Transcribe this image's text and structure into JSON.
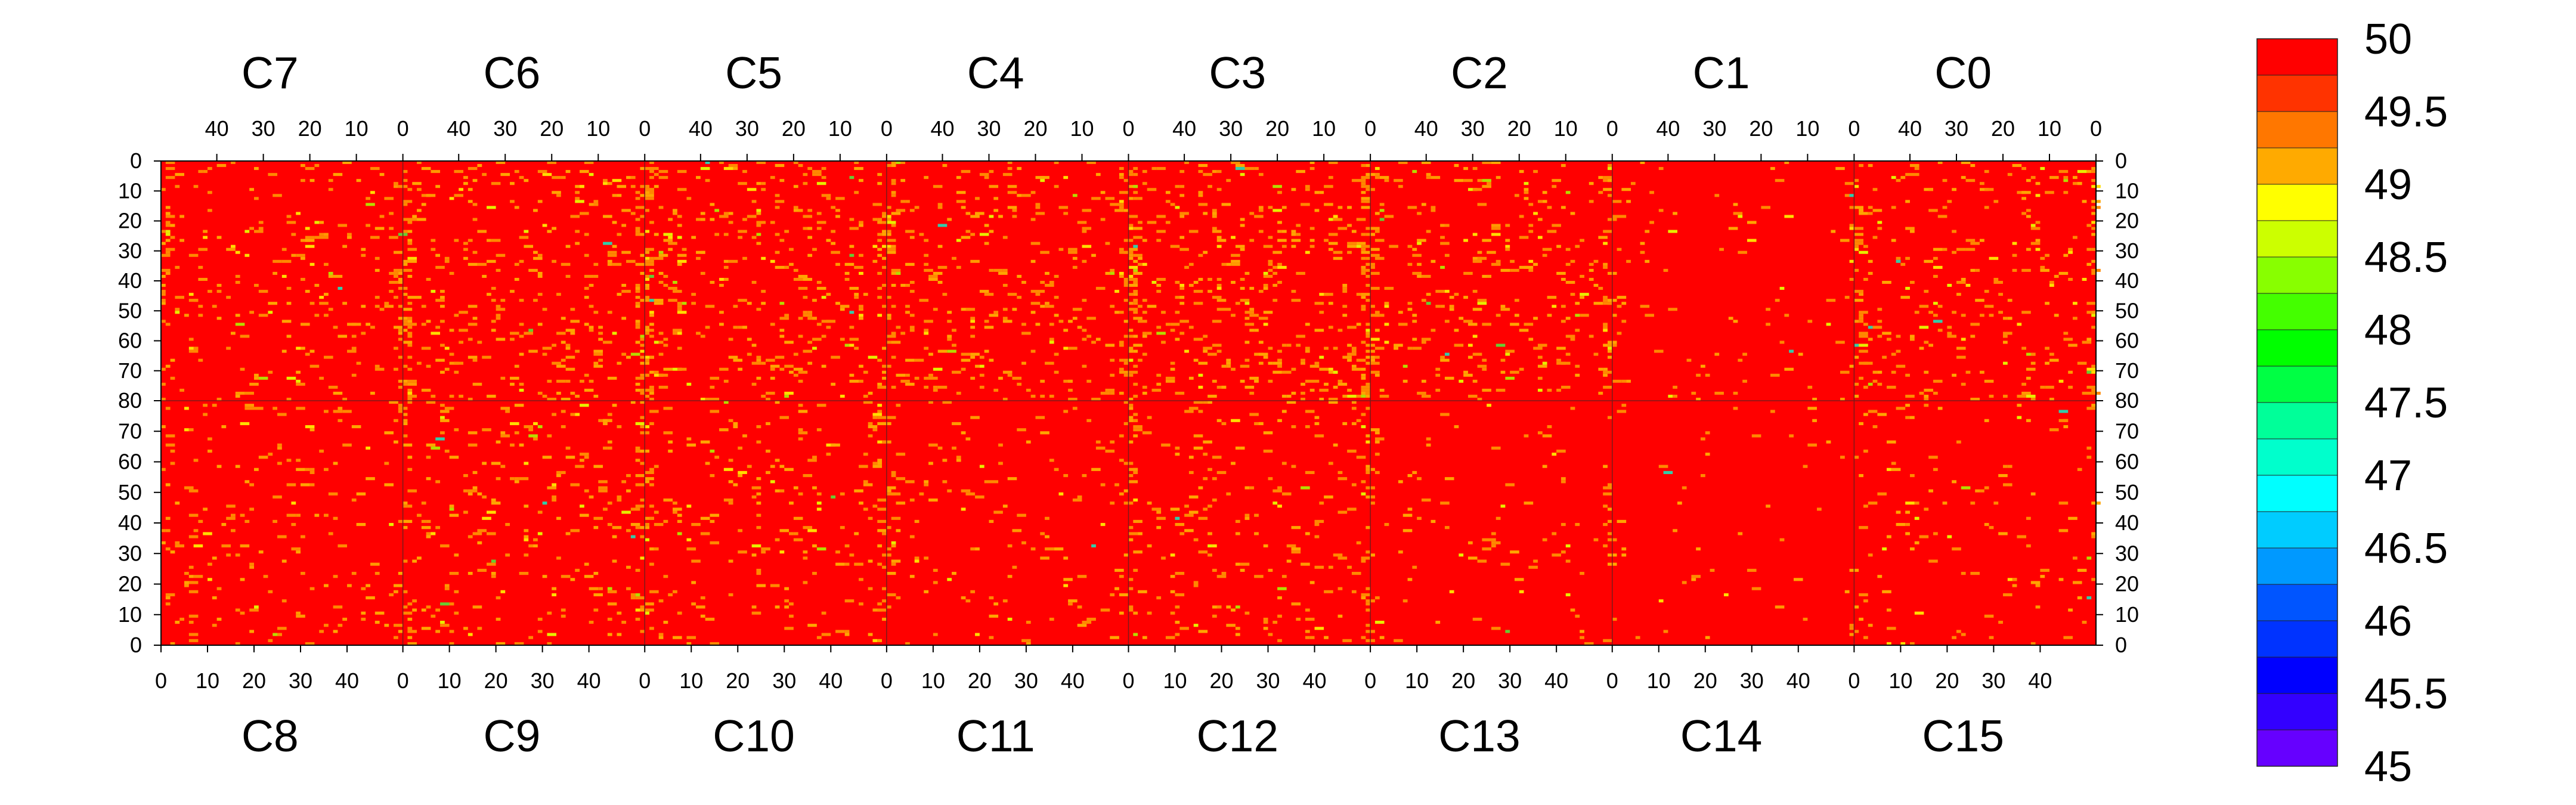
{
  "chart_data": {
    "type": "heatmap",
    "title": "",
    "xlabel": "",
    "ylabel": "",
    "top_modules": [
      "C7",
      "C6",
      "C5",
      "C4",
      "C3",
      "C2",
      "C1",
      "C0"
    ],
    "bottom_modules": [
      "C8",
      "C9",
      "C10",
      "C11",
      "C12",
      "C13",
      "C14",
      "C15"
    ],
    "top_x_ticks": [
      "40",
      "30",
      "20",
      "10",
      "0"
    ],
    "bottom_x_ticks": [
      "0",
      "10",
      "20",
      "30",
      "40"
    ],
    "top_y_ticks": [
      "0",
      "10",
      "20",
      "30",
      "40",
      "50",
      "60",
      "70",
      "80"
    ],
    "bottom_y_ticks": [
      "80",
      "70",
      "60",
      "50",
      "40",
      "30",
      "20",
      "10",
      "0"
    ],
    "columns_per_module": 52,
    "rows_per_half": 80,
    "value_range": [
      45,
      50
    ],
    "baseline_value": 50,
    "colorbar": {
      "tick_labels": [
        "50",
        "49.5",
        "49",
        "48.5",
        "48",
        "47.5",
        "47",
        "46.5",
        "46",
        "45.5",
        "45"
      ],
      "colors": [
        "#ff0000",
        "#ff3300",
        "#ff7700",
        "#ffaa00",
        "#ffff00",
        "#ccff00",
        "#88ff00",
        "#44ff00",
        "#00ff00",
        "#00ff44",
        "#00ff99",
        "#00ffcc",
        "#00ffff",
        "#00ccff",
        "#0099ff",
        "#0055ff",
        "#0033ff",
        "#0000ff",
        "#3300ff",
        "#6600ff"
      ]
    },
    "deviation_colors": [
      "#ff8800",
      "#ffa500",
      "#ff9900",
      "#ffdd00",
      "#e6ee00",
      "#b4dc00",
      "#66cc33",
      "#33ccaa"
    ],
    "module_activity": {
      "C7": 0.055,
      "C6": 0.08,
      "C5": 0.075,
      "C4": 0.07,
      "C3": 0.085,
      "C2": 0.06,
      "C1": 0.02,
      "C0": 0.06,
      "C8": 0.04,
      "C9": 0.055,
      "C10": 0.05,
      "C11": 0.035,
      "C12": 0.05,
      "C13": 0.02,
      "C14": 0.01,
      "C15": 0.025
    }
  }
}
